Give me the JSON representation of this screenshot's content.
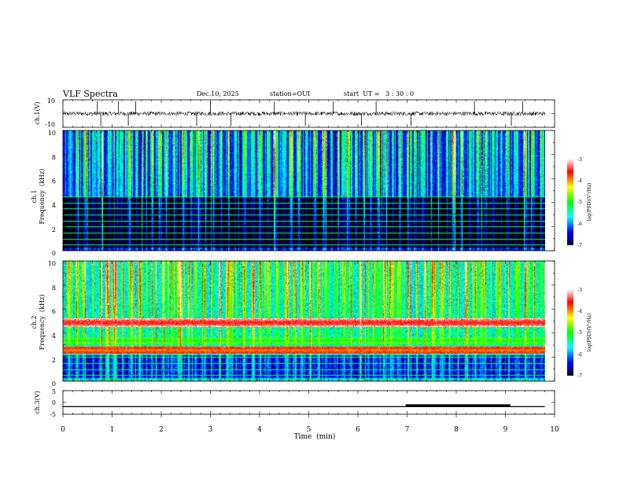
{
  "header": {
    "title": "VLF Spectra",
    "date": "Dec.10, 2025",
    "station": "station=OUI",
    "start": "start  UT =   3 : 30 : 0"
  },
  "chart_data": [
    {
      "type": "line",
      "name": "ch1-waveform",
      "ylabel": "ch.1(V)",
      "ylim": [
        -10,
        10
      ],
      "yticks": [
        "10",
        "-10"
      ],
      "baseline": 0,
      "noise_amplitude": 1.5,
      "spike_times_min": [
        0.7,
        0.77,
        1.13,
        1.33,
        1.48,
        2.72,
        3.0,
        3.42,
        4.3,
        4.93,
        5.5,
        6.07,
        6.37,
        7.08,
        8.37,
        9.12,
        9.35
      ]
    },
    {
      "type": "heatmap",
      "name": "ch1-spectrogram",
      "ylabel_line1": "ch.1",
      "ylabel_line2": "Frequency  (kHz)",
      "ylim": [
        0,
        10
      ],
      "yticks": [
        "0",
        "2",
        "4",
        "6",
        "8",
        "10"
      ],
      "noise_floor_log_psd": -6.4,
      "low_band_kHz": [
        0.3,
        4.5
      ],
      "hum_lines_kHz": [
        0.5,
        1.0,
        1.5,
        2.0,
        2.5,
        3.0,
        3.5,
        4.0,
        4.5
      ],
      "sferic_times_min": [
        0.15,
        0.3,
        0.45,
        0.62,
        0.72,
        0.8,
        0.95,
        1.1,
        1.2,
        1.35,
        1.48,
        1.62,
        1.8,
        1.95,
        2.1,
        2.25,
        2.45,
        2.6,
        2.75,
        2.9,
        3.05,
        3.2,
        3.35,
        3.5,
        3.7,
        3.85,
        4.0,
        4.15,
        4.32,
        4.5,
        4.65,
        4.8,
        4.95,
        5.12,
        5.3,
        5.45,
        5.6,
        5.78,
        5.95,
        6.1,
        6.25,
        6.4,
        6.55,
        6.7,
        6.85,
        7.0,
        7.15,
        7.3,
        7.48,
        7.62,
        7.8,
        7.95,
        8.1,
        8.28,
        8.42,
        8.6,
        8.75,
        8.9,
        9.05,
        9.2,
        9.38,
        9.55,
        9.7
      ]
    },
    {
      "type": "heatmap",
      "name": "ch2-spectrogram",
      "ylabel_line1": "ch.2",
      "ylabel_line2": "Frequency  (kHz)",
      "ylim": [
        0,
        10
      ],
      "yticks": [
        "0",
        "2",
        "4",
        "6",
        "8",
        "10"
      ],
      "noise_floor_log_psd": -5.7,
      "low_band_kHz": [
        0.3,
        2.2
      ],
      "emission_bands": [
        {
          "freq_kHz": 4.9,
          "log_psd": -3.7,
          "width_kHz": 0.35
        },
        {
          "freq_kHz": 2.6,
          "log_psd": -4.0,
          "width_kHz": 0.3
        },
        {
          "freq_kHz": 3.4,
          "log_psd": -5.2,
          "width_kHz": 0.25
        }
      ],
      "hum_lines_kHz": [
        0.5,
        1.0,
        1.5,
        2.0,
        2.5,
        3.0,
        3.5,
        4.0
      ],
      "sferic_times_min": [
        0.12,
        0.28,
        0.42,
        0.6,
        0.75,
        0.9,
        1.05,
        1.22,
        1.38,
        1.55,
        1.7,
        1.88,
        2.05,
        2.2,
        2.38,
        2.55,
        2.7,
        2.88,
        3.02,
        3.18,
        3.35,
        3.52,
        3.68,
        3.85,
        4.02,
        4.18,
        4.35,
        4.52,
        4.68,
        4.85,
        5.02,
        5.2,
        5.35,
        5.52,
        5.7,
        5.85,
        6.02,
        6.2,
        6.35,
        6.52,
        6.7,
        6.85,
        7.02,
        7.2,
        7.35,
        7.52,
        7.7,
        7.85,
        8.02,
        8.2,
        8.38,
        8.55,
        8.7,
        8.88,
        9.05,
        9.22,
        9.4,
        9.58,
        9.72
      ]
    },
    {
      "type": "line",
      "name": "ch3-level",
      "ylabel": "ch.3(V)",
      "ylim": [
        -5,
        5
      ],
      "yticks": [
        "5",
        "0",
        "-5"
      ],
      "level": -1.8,
      "thick_segment_min": [
        6.97,
        9.1
      ]
    }
  ],
  "colorbars": [
    {
      "label": "log(PSD)(V²/Hz)",
      "range": [
        -7,
        -3
      ],
      "ticks": [
        "-3",
        "-4",
        "-5",
        "-6",
        "-7"
      ]
    },
    {
      "label": "log(PSD)(V²/Hz)",
      "range": [
        -7,
        -3
      ],
      "ticks": [
        "-3",
        "-4",
        "-5",
        "-6",
        "-7"
      ]
    }
  ],
  "x_axis": {
    "label": "Time  (min)",
    "range": [
      0,
      10
    ],
    "data_end_min": 9.8,
    "ticks": [
      "0",
      "1",
      "2",
      "3",
      "4",
      "5",
      "6",
      "7",
      "8",
      "9",
      "10"
    ]
  },
  "colors": {
    "axis": "#000000",
    "background": "#ffffff"
  }
}
